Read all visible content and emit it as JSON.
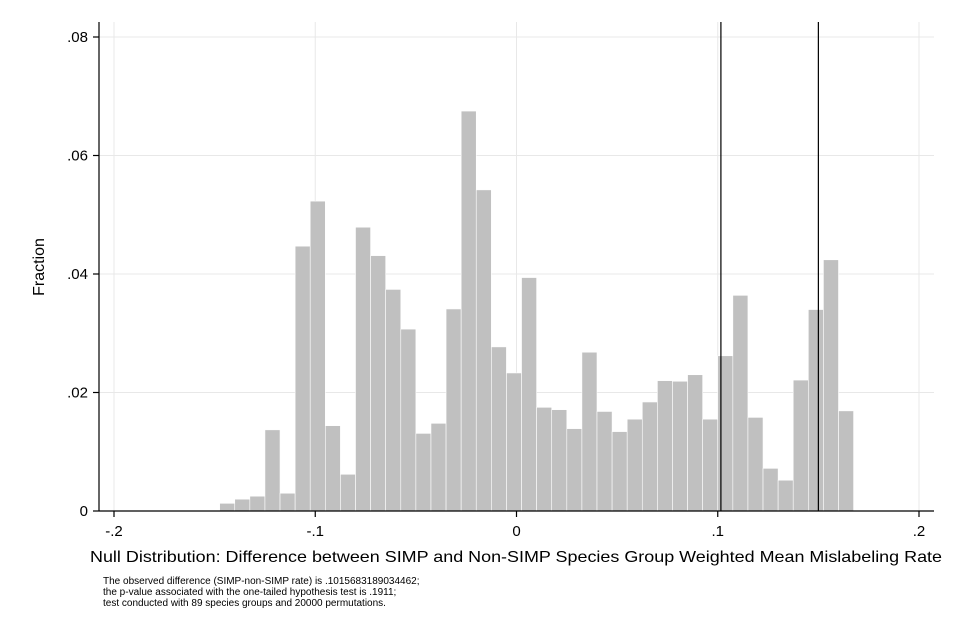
{
  "chart_data": {
    "type": "bar",
    "title": "",
    "xlabel": "Null Distribution: Difference between SIMP and Non-SIMP Species Group Weighted Mean Mislabeling Rate",
    "ylabel": "Fraction",
    "xlim": [
      -0.2,
      0.2
    ],
    "ylim": [
      0,
      0.08
    ],
    "x_ticks": [
      -0.2,
      -0.1,
      0,
      0.1,
      0.2
    ],
    "x_tick_labels": [
      "-.2",
      "-.1",
      "0",
      ".1",
      ".2"
    ],
    "y_ticks": [
      0,
      0.02,
      0.04,
      0.06,
      0.08
    ],
    "y_tick_labels": [
      "0",
      ".02",
      ".04",
      ".06",
      ".08"
    ],
    "grid": true,
    "bar_color": "#c0c0c0",
    "bin_width": 0.0075,
    "bin_start": -0.2,
    "values": [
      0,
      0,
      0,
      0,
      0,
      0,
      0,
      0.0013,
      0.002,
      0.0025,
      0.0137,
      0.003,
      0.0447,
      0.0523,
      0.0144,
      0.0062,
      0.0479,
      0.0431,
      0.0374,
      0.0307,
      0.0131,
      0.0148,
      0.0341,
      0.0675,
      0.0542,
      0.0277,
      0.0233,
      0.0394,
      0.0175,
      0.0171,
      0.0139,
      0.0268,
      0.0168,
      0.0134,
      0.0155,
      0.0184,
      0.022,
      0.0219,
      0.023,
      0.0155,
      0.0262,
      0.0364,
      0.0158,
      0.0072,
      0.0052,
      0.0221,
      0.034,
      0.0424,
      0.0169
    ],
    "reference_lines": [
      0.1015683189034462,
      0.15
    ]
  },
  "notes": [
    "The observed difference (SIMP-non-SIMP rate) is .1015683189034462;",
    "the p-value associated with the one-tailed hypothesis test is .1911;",
    "test conducted with 89 species groups and 20000 permutations."
  ]
}
